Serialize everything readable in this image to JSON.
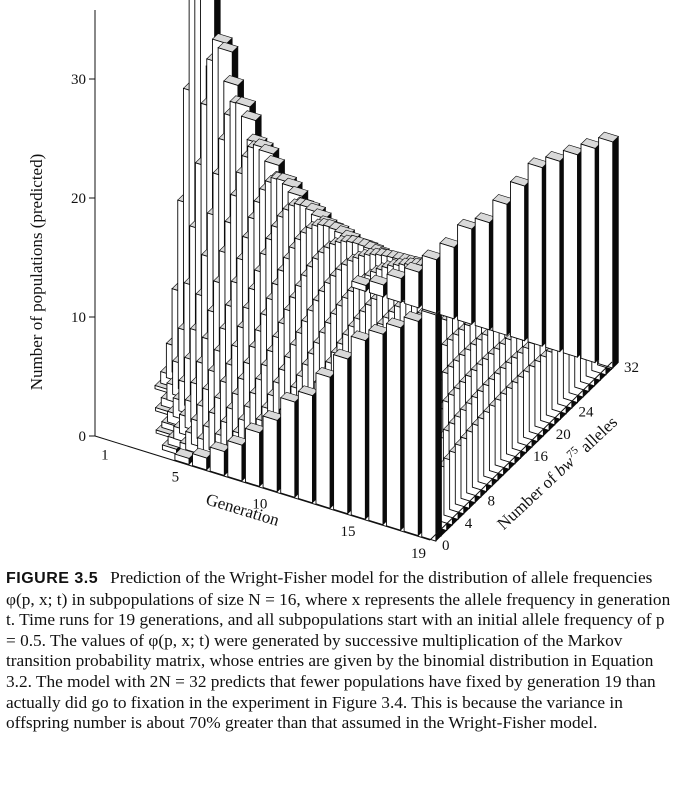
{
  "caption": {
    "label": "FIGURE 3.5",
    "text": "Prediction of the Wright-Fisher model for the distribution of allele frequencies φ(p, x; t) in subpopulations of size N = 16, where x represents the allele frequency in generation t. Time runs for 19 generations, and all subpopulations start with an initial allele frequency of p = 0.5. The values of φ(p, x; t) were generated by successive multiplication of the Markov transition probability matrix, whose entries are given by the binomial distribution in Equation 3.2. The model with 2N = 32 predicts that fewer populations have fixed by generation 19 than actually did go to fixation in the experiment in Figure 3.4. This is because the variance in offspring number is about 70% greater than that assumed in the Wright-Fisher model."
  },
  "chart_data": {
    "type": "bar",
    "projection": "3d",
    "zlabel": "Number of populations (predicted)",
    "xlabel": "Generation",
    "ylabel": "Number of bw75 alleles",
    "ylabel_parts": {
      "pre": "Number of ",
      "base": "bw",
      "sup": "75",
      "post": " alleles"
    },
    "z_ticks": [
      "0",
      "10",
      "20",
      "30"
    ],
    "z_tick_values": [
      0,
      10,
      20,
      30
    ],
    "generation_ticks": [
      "1",
      "5",
      "10",
      "15",
      "19"
    ],
    "generation_tick_values": [
      1,
      5,
      10,
      15,
      19
    ],
    "allele_ticks": [
      "0",
      "4",
      "8",
      "16",
      "20",
      "24",
      "32"
    ],
    "allele_tick_values": [
      0,
      4,
      8,
      16,
      20,
      24,
      32
    ],
    "generations": 19,
    "allele_range": [
      0,
      32
    ],
    "population_size_N": 16,
    "initial_frequency_p": 0.5,
    "fixed_count_allele_32": [
      0,
      0,
      0,
      0,
      0.5,
      1,
      2,
      3,
      4.5,
      6,
      8,
      9,
      11,
      13,
      15,
      16,
      17,
      18,
      19
    ],
    "lost_count_allele_0": [
      0,
      0,
      0,
      0,
      0.5,
      1,
      2,
      3,
      4.5,
      6,
      8,
      9,
      11,
      13,
      15,
      16,
      17,
      18,
      19
    ],
    "central_peak_generation_1": 34
  }
}
